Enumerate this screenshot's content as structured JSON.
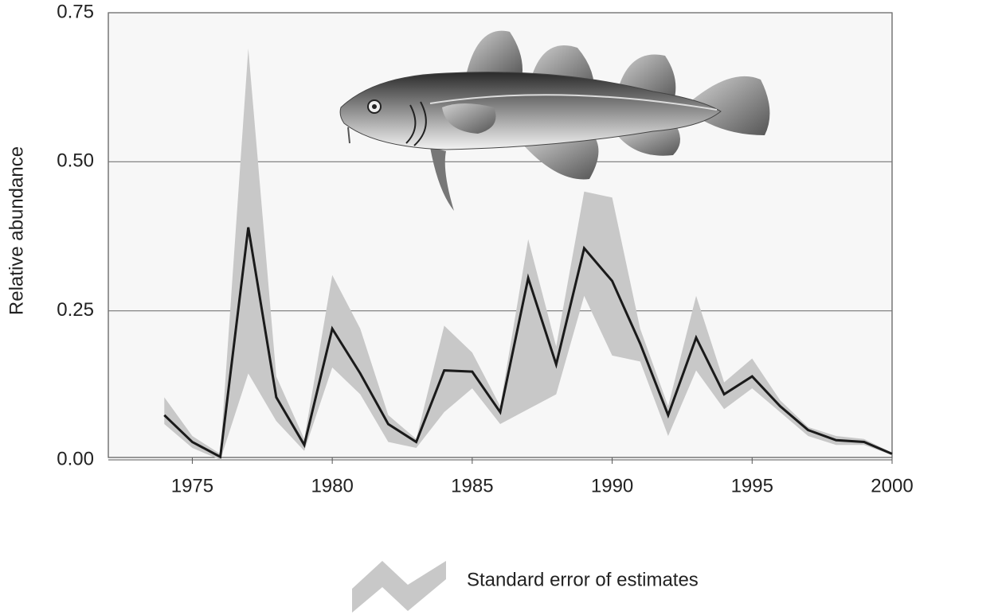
{
  "chart_data": {
    "type": "line",
    "y_label": "Relative abundance",
    "x": [
      1974,
      1975,
      1976,
      1977,
      1978,
      1979,
      1980,
      1981,
      1982,
      1983,
      1984,
      1985,
      1986,
      1987,
      1988,
      1989,
      1990,
      1991,
      1992,
      1993,
      1994,
      1995,
      1996,
      1997,
      1998,
      1999,
      2000
    ],
    "series": [
      {
        "color": "#1a1a1a",
        "values": [
          0.075,
          0.03,
          0.005,
          0.39,
          0.105,
          0.025,
          0.22,
          0.145,
          0.06,
          0.03,
          0.15,
          0.148,
          0.08,
          0.305,
          0.16,
          0.355,
          0.3,
          0.195,
          0.075,
          0.205,
          0.11,
          0.14,
          0.09,
          0.05,
          0.033,
          0.03,
          0.01
        ]
      }
    ],
    "band": {
      "name": "Standard error of estimates",
      "color": "#c8c8c8",
      "upper": [
        0.105,
        0.04,
        0.01,
        0.69,
        0.14,
        0.035,
        0.31,
        0.22,
        0.075,
        0.035,
        0.225,
        0.18,
        0.09,
        0.37,
        0.19,
        0.45,
        0.44,
        0.22,
        0.09,
        0.275,
        0.13,
        0.17,
        0.1,
        0.055,
        0.04,
        0.035,
        0.012
      ],
      "lower": [
        0.06,
        0.02,
        0.0,
        0.145,
        0.065,
        0.015,
        0.155,
        0.11,
        0.03,
        0.02,
        0.08,
        0.12,
        0.06,
        0.085,
        0.11,
        0.275,
        0.175,
        0.165,
        0.04,
        0.15,
        0.085,
        0.12,
        0.08,
        0.04,
        0.025,
        0.025,
        0.008
      ]
    },
    "xlim": [
      1972,
      2000
    ],
    "xticks": [
      1975,
      1980,
      1985,
      1990,
      1995,
      2000
    ],
    "ylim": [
      0,
      0.75
    ],
    "yticks": [
      {
        "value": 0,
        "label": "0.00"
      },
      {
        "value": 0.25,
        "label": "0.25"
      },
      {
        "value": 0.5,
        "label": "0.50"
      },
      {
        "value": 0.75,
        "label": "0.75"
      }
    ],
    "grid": true
  }
}
